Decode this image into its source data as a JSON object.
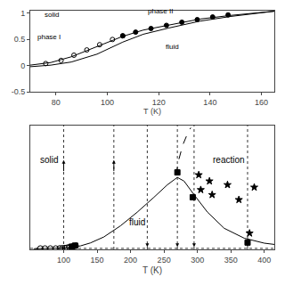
{
  "chart_data": [
    {
      "type": "line",
      "xlabel": "T (K)",
      "xlim": [
        50,
        415
      ],
      "ylim": [
        0,
        1.0
      ],
      "xticks": [
        100,
        150,
        200,
        250,
        300,
        350,
        400
      ],
      "tick_labels": "x",
      "series": [
        {
          "type": "line",
          "line_style": "solid",
          "color": "#000000",
          "x": [
            55,
            65,
            75,
            85,
            95,
            105,
            115,
            125,
            140,
            160,
            185,
            210,
            235,
            255,
            270,
            280,
            295,
            315,
            340,
            370,
            400,
            415
          ],
          "values": [
            0.005,
            0.006,
            0.007,
            0.008,
            0.009,
            0.012,
            0.018,
            0.028,
            0.052,
            0.1,
            0.19,
            0.3,
            0.42,
            0.52,
            0.58,
            0.55,
            0.44,
            0.3,
            0.17,
            0.09,
            0.05,
            0.04
          ]
        },
        {
          "type": "line",
          "line_style": "dashed",
          "color": "#000000",
          "x": [
            268,
            272,
            278,
            285,
            290
          ],
          "values": [
            0.6,
            0.72,
            0.84,
            0.93,
            0.98
          ]
        },
        {
          "type": "scatter",
          "marker": "circle-open",
          "color": "#000000",
          "x": [
            65,
            72,
            80,
            88,
            94,
            98,
            102,
            105,
            108,
            112,
            115,
            118
          ],
          "values": [
            0.008,
            0.008,
            0.008,
            0.008,
            0.009,
            0.01,
            0.012,
            0.014,
            0.018,
            0.022,
            0.026,
            0.03
          ]
        },
        {
          "type": "scatter",
          "marker": "square",
          "color": "#000000",
          "x": [
            112,
            117,
            270,
            293,
            375
          ],
          "values": [
            0.022,
            0.03,
            0.62,
            0.42,
            0.055
          ]
        },
        {
          "type": "scatter",
          "marker": "star",
          "color": "#000000",
          "x": [
            302,
            318,
            345,
            385,
            305,
            322,
            362,
            378
          ],
          "values": [
            0.6,
            0.55,
            0.52,
            0.5,
            0.48,
            0.44,
            0.4,
            0.13
          ]
        }
      ],
      "hlines": [
        0.008
      ],
      "vlines": [
        100,
        175,
        225,
        270,
        295,
        375
      ],
      "arrows": [
        {
          "x": 100,
          "y_tail": 0.62,
          "y_head": 0.72
        },
        {
          "x": 175,
          "y_tail": 0.62,
          "y_head": 0.72
        },
        {
          "x": 225,
          "y_tail": 0.042,
          "y_head": 0.02
        },
        {
          "x": 270,
          "y_tail": 0.042,
          "y_head": 0.02
        },
        {
          "x": 295,
          "y_tail": 0.042,
          "y_head": 0.02
        },
        {
          "x": 375,
          "y_tail": 0.042,
          "y_head": 0.02
        }
      ],
      "annotations": [
        {
          "text": "solid",
          "x": 62,
          "y": 0.72
        },
        {
          "text": "fluid",
          "x": 195,
          "y": 0.22
        },
        {
          "text": "reaction",
          "x": 320,
          "y": 0.72
        }
      ]
    },
    {
      "type": "line",
      "xlabel": "T (K)",
      "xlim": [
        70,
        165
      ],
      "ylim": [
        -0.5,
        1.05
      ],
      "xticks": [
        80,
        100,
        120,
        140,
        160
      ],
      "yticks": [
        -0.5,
        0,
        0.5,
        1
      ],
      "series": [
        {
          "type": "line",
          "line_style": "solid",
          "color": "#000000",
          "x": [
            70,
            78,
            86,
            96,
            106,
            114,
            124,
            136,
            148,
            160,
            165
          ],
          "values": [
            0.01,
            0.06,
            0.17,
            0.36,
            0.56,
            0.68,
            0.78,
            0.89,
            0.96,
            1.02,
            1.04
          ]
        },
        {
          "type": "line",
          "line_style": "solid",
          "color": "#000000",
          "x": [
            70,
            78,
            86,
            96,
            106,
            114,
            124,
            136,
            148,
            160,
            165
          ],
          "values": [
            -0.02,
            0.01,
            0.07,
            0.22,
            0.45,
            0.6,
            0.72,
            0.85,
            0.94,
            1.01,
            1.04
          ]
        },
        {
          "type": "scatter",
          "marker": "circle-open",
          "color": "#000000",
          "x": [
            76,
            82,
            87,
            92,
            97,
            102,
            106
          ],
          "values": [
            0.04,
            0.1,
            0.2,
            0.3,
            0.4,
            0.5,
            0.57
          ]
        },
        {
          "type": "scatter",
          "marker": "circle",
          "color": "#000000",
          "x": [
            106,
            111,
            117,
            123,
            129,
            135,
            141,
            147
          ],
          "values": [
            0.57,
            0.64,
            0.71,
            0.77,
            0.83,
            0.88,
            0.93,
            0.97
          ]
        }
      ],
      "annotations": [
        {
          "text": "solid",
          "x": 75,
          "y": 0.86
        },
        {
          "text": "fluid",
          "x": 122,
          "y": 0.25
        },
        {
          "text": "phase I",
          "x": 72,
          "y": 0.44
        },
        {
          "text": "phase II",
          "x": 115,
          "y": 0.93
        }
      ]
    }
  ]
}
